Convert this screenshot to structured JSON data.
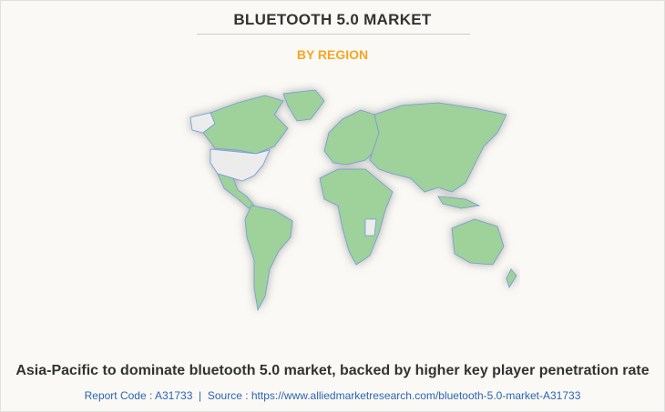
{
  "header": {
    "title": "BLUETOOTH 5.0 MARKET",
    "subtitle": "BY REGION"
  },
  "map": {
    "colors": {
      "highlighted": "#9fd19a",
      "no_data": "#ececec",
      "border": "#6f9be0"
    }
  },
  "footer": {
    "caption": "Asia-Pacific to dominate bluetooth 5.0 market, backed by higher key player penetration rate",
    "report_code": "Report Code : A31733",
    "separator": "|",
    "source": "Source : https://www.alliedmarketresearch.com/bluetooth-5.0-market-A31733"
  }
}
